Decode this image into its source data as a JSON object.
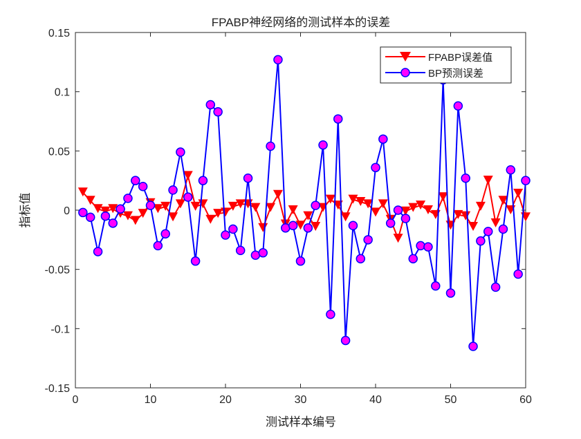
{
  "chart_data": {
    "type": "line",
    "title": "FPABP神经网络的测试样本的误差",
    "xlabel": "测试样本编号",
    "ylabel": "指标值",
    "xlim": [
      0,
      60
    ],
    "ylim": [
      -0.15,
      0.15
    ],
    "xticks": [
      0,
      10,
      20,
      30,
      40,
      50,
      60
    ],
    "xtick_labels": [
      "0",
      "10",
      "20",
      "30",
      "40",
      "50",
      "60"
    ],
    "yticks": [
      -0.15,
      -0.1,
      -0.05,
      0,
      0.05,
      0.1,
      0.15
    ],
    "ytick_labels": [
      "-0.15",
      "-0.1",
      "-0.05",
      "0",
      "0.05",
      "0.1",
      "0.15"
    ],
    "grid": false,
    "legend_position": "top-right",
    "x": [
      1,
      2,
      3,
      4,
      5,
      6,
      7,
      8,
      9,
      10,
      11,
      12,
      13,
      14,
      15,
      16,
      17,
      18,
      19,
      20,
      21,
      22,
      23,
      24,
      25,
      26,
      27,
      28,
      29,
      30,
      31,
      32,
      33,
      34,
      35,
      36,
      37,
      38,
      39,
      40,
      41,
      42,
      43,
      44,
      45,
      46,
      47,
      48,
      49,
      50,
      51,
      52,
      53,
      54,
      55,
      56,
      57,
      58,
      59,
      60
    ],
    "series": [
      {
        "name": "FPABP误差值",
        "color": "#ff0000",
        "marker": "triangle-down",
        "values": [
          0.015,
          0.008,
          0.001,
          -0.001,
          0.001,
          -0.003,
          -0.005,
          -0.009,
          -0.003,
          0.006,
          0.001,
          0.003,
          -0.006,
          0.005,
          0.029,
          0.003,
          0.005,
          -0.008,
          -0.003,
          -0.002,
          0.003,
          0.005,
          0.005,
          0.002,
          -0.015,
          0.002,
          0.013,
          -0.012,
          0.0,
          -0.013,
          -0.005,
          -0.014,
          0.002,
          0.009,
          0.004,
          -0.006,
          0.009,
          0.007,
          0.005,
          -0.002,
          0.005,
          -0.008,
          -0.024,
          -0.001,
          0.002,
          0.004,
          0.0,
          -0.004,
          0.011,
          -0.013,
          -0.004,
          -0.005,
          -0.014,
          0.003,
          0.025,
          -0.011,
          0.008,
          0.0,
          0.014,
          -0.006
        ]
      },
      {
        "name": "BP预测误差",
        "color": "#0000ff",
        "marker_fill": "#ff00ff",
        "marker": "circle",
        "values": [
          -0.002,
          -0.006,
          -0.035,
          -0.005,
          -0.011,
          0.001,
          0.01,
          0.025,
          0.02,
          0.004,
          -0.03,
          -0.02,
          0.017,
          0.049,
          0.011,
          -0.043,
          0.025,
          0.089,
          0.083,
          -0.021,
          -0.016,
          -0.034,
          0.027,
          -0.038,
          -0.036,
          0.054,
          0.127,
          -0.015,
          -0.013,
          -0.043,
          -0.015,
          0.004,
          0.055,
          -0.088,
          0.077,
          -0.11,
          -0.013,
          -0.041,
          -0.025,
          0.036,
          0.06,
          -0.011,
          0.0,
          -0.007,
          -0.041,
          -0.03,
          -0.031,
          -0.064,
          0.11,
          -0.07,
          0.088,
          0.027,
          -0.115,
          -0.026,
          -0.018,
          -0.065,
          -0.016,
          0.034,
          -0.054,
          0.025
        ]
      }
    ]
  }
}
